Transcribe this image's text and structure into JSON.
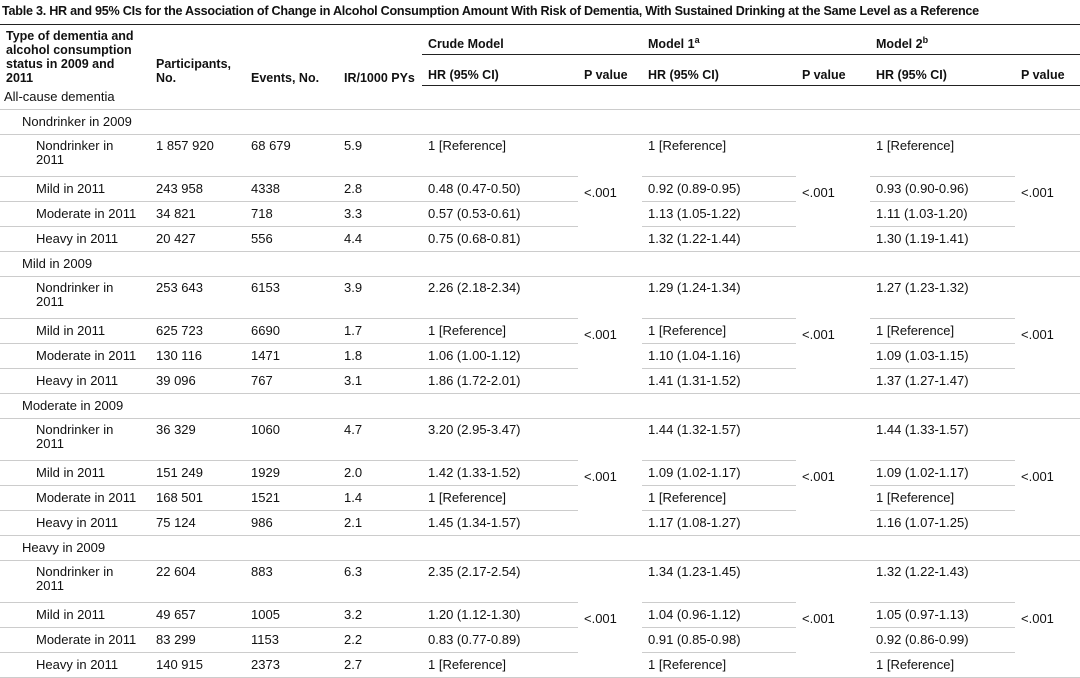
{
  "title": "Table 3. HR and 95% CIs for the Association of Change in Alcohol Consumption Amount With Risk of Dementia, With Sustained Drinking at the Same Level as a Reference",
  "header": {
    "col1": "Type of dementia and alcohol consumption status in 2009 and 2011",
    "participants": "Participants, No.",
    "events": "Events, No.",
    "ir": "IR/1000 PYs",
    "crude": "Crude Model",
    "model1": "Model 1",
    "model1_sup": "a",
    "model2": "Model 2",
    "model2_sup": "b",
    "subheaders": [
      "HR (95% CI)",
      "P value",
      "HR (95% CI)",
      "P value",
      "HR (95% CI)",
      "P value"
    ]
  },
  "section": "All-cause dementia",
  "groups": [
    {
      "label": "Nondrinker in 2009",
      "p_values": [
        "<.001",
        "<.001",
        "<.001"
      ],
      "rows": [
        [
          "Nondrinker in 2011",
          "1 857 920",
          "68 679",
          "5.9",
          "1 [Reference]",
          "1 [Reference]",
          "1 [Reference]"
        ],
        [
          "Mild in 2011",
          "243 958",
          "4338",
          "2.8",
          "0.48 (0.47-0.50)",
          "0.92 (0.89-0.95)",
          "0.93 (0.90-0.96)"
        ],
        [
          "Moderate in 2011",
          "34 821",
          "718",
          "3.3",
          "0.57 (0.53-0.61)",
          "1.13 (1.05-1.22)",
          "1.11 (1.03-1.20)"
        ],
        [
          "Heavy in 2011",
          "20 427",
          "556",
          "4.4",
          "0.75 (0.68-0.81)",
          "1.32 (1.22-1.44)",
          "1.30 (1.19-1.41)"
        ]
      ]
    },
    {
      "label": "Mild in 2009",
      "p_values": [
        "<.001",
        "<.001",
        "<.001"
      ],
      "rows": [
        [
          "Nondrinker in 2011",
          "253 643",
          "6153",
          "3.9",
          "2.26 (2.18-2.34)",
          "1.29 (1.24-1.34)",
          "1.27 (1.23-1.32)"
        ],
        [
          "Mild in 2011",
          "625 723",
          "6690",
          "1.7",
          "1 [Reference]",
          "1 [Reference]",
          "1 [Reference]"
        ],
        [
          "Moderate in 2011",
          "130 116",
          "1471",
          "1.8",
          "1.06 (1.00-1.12)",
          "1.10 (1.04-1.16)",
          "1.09 (1.03-1.15)"
        ],
        [
          "Heavy in 2011",
          "39 096",
          "767",
          "3.1",
          "1.86 (1.72-2.01)",
          "1.41 (1.31-1.52)",
          "1.37 (1.27-1.47)"
        ]
      ]
    },
    {
      "label": "Moderate in 2009",
      "p_values": [
        "<.001",
        "<.001",
        "<.001"
      ],
      "rows": [
        [
          "Nondrinker in 2011",
          "36 329",
          "1060",
          "4.7",
          "3.20 (2.95-3.47)",
          "1.44 (1.32-1.57)",
          "1.44 (1.33-1.57)"
        ],
        [
          "Mild in 2011",
          "151 249",
          "1929",
          "2.0",
          "1.42 (1.33-1.52)",
          "1.09 (1.02-1.17)",
          "1.09 (1.02-1.17)"
        ],
        [
          "Moderate in 2011",
          "168 501",
          "1521",
          "1.4",
          "1 [Reference]",
          "1 [Reference]",
          "1 [Reference]"
        ],
        [
          "Heavy in 2011",
          "75 124",
          "986",
          "2.1",
          "1.45 (1.34-1.57)",
          "1.17 (1.08-1.27)",
          "1.16 (1.07-1.25)"
        ]
      ]
    },
    {
      "label": "Heavy in 2009",
      "p_values": [
        "<.001",
        "<.001",
        "<.001"
      ],
      "rows": [
        [
          "Nondrinker in 2011",
          "22 604",
          "883",
          "6.3",
          "2.35 (2.17-2.54)",
          "1.34 (1.23-1.45)",
          "1.32 (1.22-1.43)"
        ],
        [
          "Mild in 2011",
          "49 657",
          "1005",
          "3.2",
          "1.20 (1.12-1.30)",
          "1.04 (0.96-1.12)",
          "1.05 (0.97-1.13)"
        ],
        [
          "Moderate in 2011",
          "83 299",
          "1153",
          "2.2",
          "0.83 (0.77-0.89)",
          "0.91 (0.85-0.98)",
          "0.92 (0.86-0.99)"
        ],
        [
          "Heavy in 2011",
          "140 915",
          "2373",
          "2.7",
          "1 [Reference]",
          "1 [Reference]",
          "1 [Reference]"
        ]
      ]
    }
  ]
}
